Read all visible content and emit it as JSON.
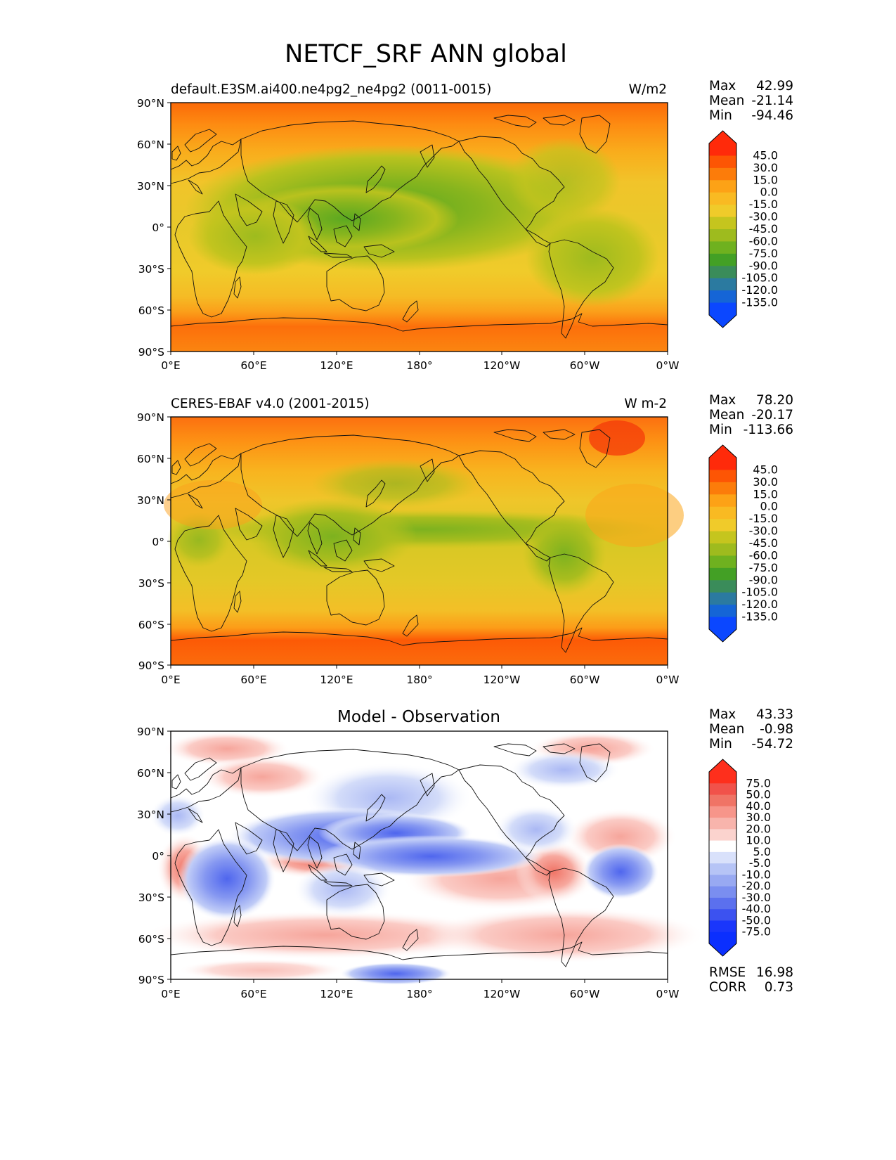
{
  "figure": {
    "title": "NETCF_SRF ANN global"
  },
  "axes": {
    "lat_labels": [
      "90°N",
      "60°N",
      "30°N",
      "0°",
      "30°S",
      "60°S",
      "90°S"
    ],
    "lon_labels": [
      "0°E",
      "60°E",
      "120°E",
      "180°",
      "120°W",
      "60°W",
      "0°W"
    ]
  },
  "panels": [
    {
      "id": "test",
      "title_left": "default.E3SM.ai400.ne4pg2_ne4pg2 (0011-0015)",
      "title_center": "",
      "units": "W/m2",
      "stats": [
        {
          "label": "Max",
          "value": "42.99"
        },
        {
          "label": "Mean",
          "value": "-21.14"
        },
        {
          "label": "Min",
          "value": "-94.46"
        }
      ],
      "footer_stats": [],
      "colorbar": {
        "ticks": [
          "45.0",
          "30.0",
          "15.0",
          "0.0",
          "-15.0",
          "-30.0",
          "-45.0",
          "-60.0",
          "-75.0",
          "-90.0",
          "-105.0",
          "-120.0",
          "-135.0"
        ],
        "colors": [
          "#ff2a0a",
          "#fd5504",
          "#fc7c0a",
          "#fda216",
          "#f9ba22",
          "#f0cb2a",
          "#c5c51e",
          "#9ebb1e",
          "#6fb11f",
          "#43a025",
          "#3a8c5a",
          "#2b7aa0",
          "#1565d6",
          "#0b47ff"
        ],
        "ext_top": "#ff2a0a",
        "ext_bottom": "#0b47ff"
      }
    },
    {
      "id": "reference",
      "title_left": "CERES-EBAF v4.0 (2001-2015)",
      "title_center": "",
      "units": "W m-2",
      "stats": [
        {
          "label": "Max",
          "value": "78.20"
        },
        {
          "label": "Mean",
          "value": "-20.17"
        },
        {
          "label": "Min",
          "value": "-113.66"
        }
      ],
      "footer_stats": [],
      "colorbar": {
        "ticks": [
          "45.0",
          "30.0",
          "15.0",
          "0.0",
          "-15.0",
          "-30.0",
          "-45.0",
          "-60.0",
          "-75.0",
          "-90.0",
          "-105.0",
          "-120.0",
          "-135.0"
        ],
        "colors": [
          "#ff2a0a",
          "#fd5504",
          "#fc7c0a",
          "#fda216",
          "#f9ba22",
          "#f0cb2a",
          "#c5c51e",
          "#9ebb1e",
          "#6fb11f",
          "#43a025",
          "#3a8c5a",
          "#2b7aa0",
          "#1565d6",
          "#0b47ff"
        ],
        "ext_top": "#ff2a0a",
        "ext_bottom": "#0b47ff"
      }
    },
    {
      "id": "diff",
      "title_left": "",
      "title_center": "Model - Observation",
      "units": "",
      "stats": [
        {
          "label": "Max",
          "value": "43.33"
        },
        {
          "label": "Mean",
          "value": "-0.98"
        },
        {
          "label": "Min",
          "value": "-54.72"
        }
      ],
      "footer_stats": [
        {
          "label": "RMSE",
          "value": "16.98"
        },
        {
          "label": "CORR",
          "value": "0.73"
        }
      ],
      "colorbar": {
        "ticks": [
          "75.0",
          "50.0",
          "40.0",
          "30.0",
          "20.0",
          "10.0",
          "5.0",
          "-5.0",
          "-10.0",
          "-20.0",
          "-30.0",
          "-40.0",
          "-50.0",
          "-75.0"
        ],
        "colors": [
          "#fe2f1c",
          "#f1524a",
          "#f07466",
          "#f7958a",
          "#f8b4ac",
          "#fbd3ce",
          "#ffffff",
          "#d9e1fb",
          "#b6c4f6",
          "#98a9f2",
          "#7a8ef0",
          "#5b70ee",
          "#3c52f0",
          "#1a36fb",
          "#0b2ffe"
        ],
        "ext_top": "#fe2f1c",
        "ext_bottom": "#0b2ffe"
      }
    }
  ]
}
